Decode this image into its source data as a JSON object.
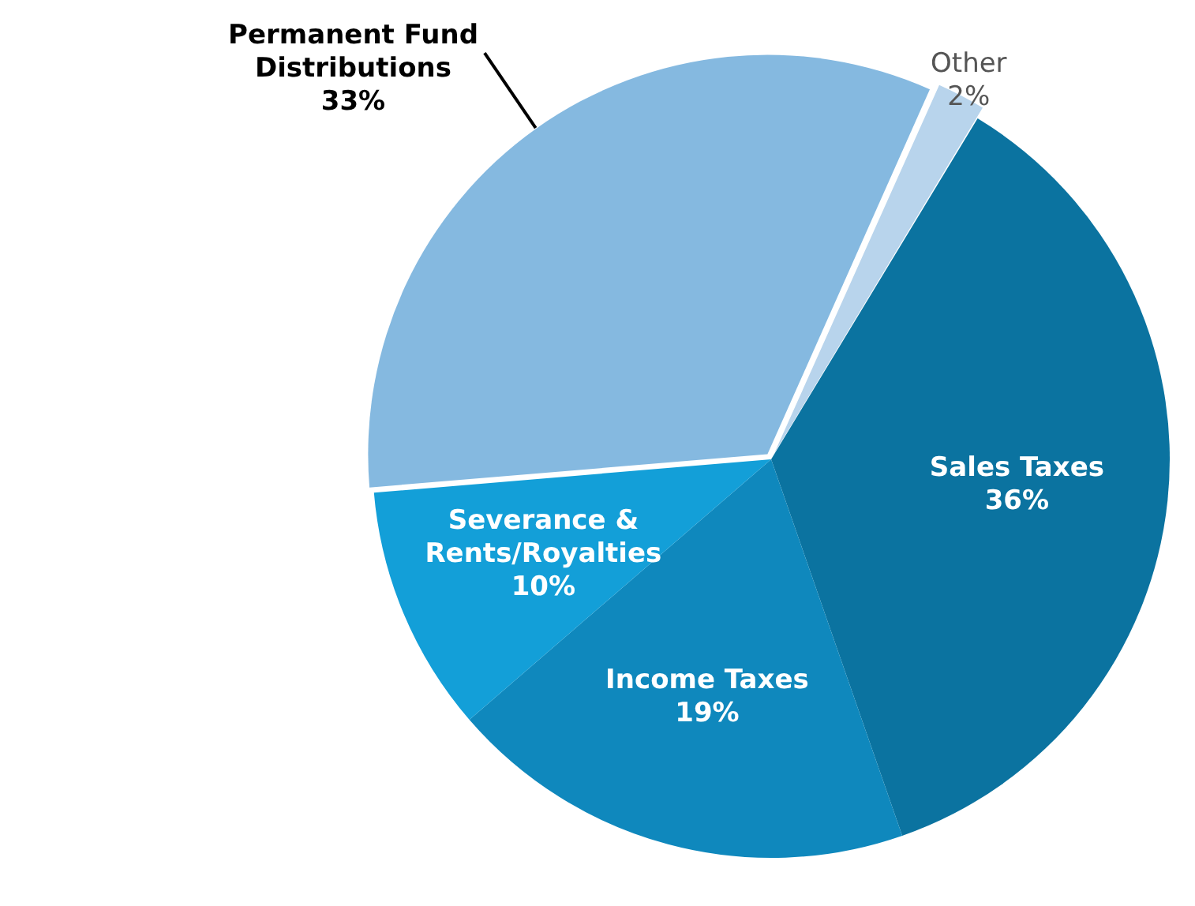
{
  "chart_data": {
    "type": "pie",
    "categories": [
      "Other",
      "Sales Taxes",
      "Income Taxes",
      "Severance & Rents/Royalties",
      "Permanent Fund Distributions"
    ],
    "values": [
      2,
      36,
      19,
      10,
      33
    ],
    "colors": [
      "#b8d4ec",
      "#0b73a0",
      "#0f88bd",
      "#139fd8",
      "#85b9e0"
    ],
    "value_labels": [
      "2%",
      "36%",
      "19%",
      "10%",
      "33%"
    ],
    "legend": false
  }
}
